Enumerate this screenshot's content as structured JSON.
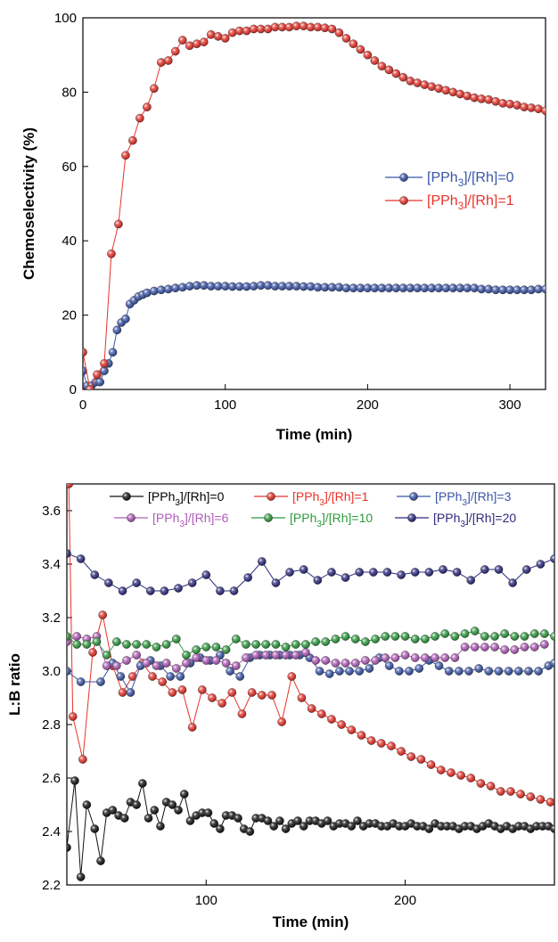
{
  "chart_data": [
    {
      "type": "line",
      "xlabel": "Time (min)",
      "ylabel": "Chemoselectivity (%)",
      "xlim": [
        0,
        325
      ],
      "ylim": [
        0,
        100
      ],
      "xticks": [
        0,
        100,
        200,
        300
      ],
      "yticks": [
        0,
        20,
        40,
        60,
        80,
        100
      ],
      "legend_position": "center-right",
      "series": [
        {
          "name": "[PPh3]/[Rh]=0",
          "name_parts": [
            "[PPh",
            "3",
            "]/[Rh]=0"
          ],
          "color": "#3a55a8",
          "x": [
            0,
            3,
            6,
            9,
            12,
            15,
            18,
            21,
            24,
            27,
            30,
            33,
            36,
            39,
            42,
            45,
            50,
            55,
            60,
            65,
            70,
            75,
            80,
            85,
            90,
            95,
            100,
            105,
            110,
            115,
            120,
            125,
            130,
            135,
            140,
            145,
            150,
            155,
            160,
            165,
            170,
            175,
            180,
            185,
            190,
            195,
            200,
            205,
            210,
            215,
            220,
            225,
            230,
            235,
            240,
            245,
            250,
            255,
            260,
            265,
            270,
            275,
            280,
            285,
            290,
            295,
            300,
            305,
            310,
            315,
            320,
            325
          ],
          "y": [
            5,
            1,
            1,
            2,
            2,
            5,
            7,
            10,
            16,
            18,
            19,
            23,
            24,
            25,
            25.5,
            26,
            26.5,
            26.8,
            27,
            27.3,
            27.5,
            27.8,
            28,
            28,
            27.8,
            27.8,
            27.8,
            27.7,
            27.7,
            27.7,
            27.8,
            28,
            28,
            27.8,
            27.8,
            27.8,
            27.8,
            27.7,
            27.7,
            27.5,
            27.5,
            27.5,
            27.5,
            27.3,
            27.3,
            27.3,
            27.3,
            27.3,
            27.3,
            27.3,
            27.3,
            27.3,
            27.3,
            27.3,
            27.3,
            27.3,
            27.3,
            27.3,
            27.3,
            27.3,
            27.3,
            27.3,
            27,
            27,
            26.8,
            26.8,
            26.8,
            26.8,
            26.8,
            26.8,
            27,
            27
          ]
        },
        {
          "name": "[PPh3]/[Rh]=1",
          "name_parts": [
            "[PPh",
            "3",
            "]/[Rh]=1"
          ],
          "color": "#e8322a",
          "x": [
            0,
            5,
            10,
            15,
            20,
            25,
            30,
            35,
            40,
            45,
            50,
            55,
            60,
            65,
            70,
            75,
            80,
            85,
            90,
            95,
            100,
            105,
            110,
            115,
            120,
            125,
            130,
            135,
            140,
            145,
            150,
            155,
            160,
            165,
            170,
            175,
            180,
            185,
            190,
            195,
            200,
            205,
            210,
            215,
            220,
            225,
            230,
            235,
            240,
            245,
            250,
            255,
            260,
            265,
            270,
            275,
            280,
            285,
            290,
            295,
            300,
            305,
            310,
            315,
            320,
            325
          ],
          "y": [
            10,
            0,
            4,
            7,
            36.5,
            44.5,
            63,
            67,
            73,
            76,
            81,
            88,
            88.5,
            91,
            94,
            92.5,
            93,
            93.5,
            95.5,
            95,
            94.5,
            96,
            96.5,
            96.5,
            97,
            97,
            97,
            97.5,
            97.5,
            97.5,
            97.8,
            97.8,
            97.5,
            97.5,
            97.3,
            97,
            96,
            94.5,
            93,
            91.5,
            90,
            88.5,
            87,
            86,
            85,
            84,
            83,
            82.5,
            82,
            81.5,
            81,
            80.5,
            80,
            79.5,
            79,
            78.5,
            78.2,
            78,
            77.5,
            77,
            76.8,
            76.5,
            76,
            75.8,
            75.5,
            75
          ]
        }
      ]
    },
    {
      "type": "line",
      "xlabel": "Time (min)",
      "ylabel": "L:B ratio",
      "xlim": [
        30,
        275
      ],
      "ylim": [
        2.2,
        3.7
      ],
      "xticks": [
        100,
        200
      ],
      "yticks": [
        2.2,
        2.4,
        2.6,
        2.8,
        3.0,
        3.2,
        3.4,
        3.6
      ],
      "legend_position": "top",
      "series": [
        {
          "name": "[PPh3]/[Rh]=0",
          "name_parts": [
            "[PPh",
            "3",
            "]/[Rh]=0"
          ],
          "color": "#111111",
          "text_color": "#000000",
          "x": [
            30,
            34,
            37,
            40,
            44,
            47,
            50,
            53,
            56,
            59,
            62,
            65,
            68,
            71,
            74,
            77,
            80,
            83,
            86,
            89,
            92,
            95,
            98,
            101,
            104,
            107,
            110,
            113,
            116,
            119,
            122,
            125,
            128,
            131,
            134,
            137,
            140,
            143,
            146,
            149,
            152,
            155,
            158,
            161,
            164,
            167,
            170,
            173,
            176,
            179,
            182,
            185,
            188,
            191,
            194,
            197,
            200,
            203,
            206,
            209,
            212,
            215,
            218,
            221,
            224,
            227,
            230,
            233,
            236,
            239,
            242,
            245,
            248,
            251,
            254,
            257,
            260,
            263,
            266,
            269,
            272,
            275
          ],
          "y": [
            2.34,
            2.59,
            2.23,
            2.5,
            2.41,
            2.29,
            2.47,
            2.48,
            2.46,
            2.45,
            2.51,
            2.5,
            2.58,
            2.45,
            2.48,
            2.42,
            2.51,
            2.5,
            2.48,
            2.54,
            2.44,
            2.46,
            2.47,
            2.47,
            2.43,
            2.41,
            2.46,
            2.46,
            2.45,
            2.41,
            2.4,
            2.45,
            2.45,
            2.44,
            2.42,
            2.44,
            2.41,
            2.43,
            2.44,
            2.42,
            2.44,
            2.44,
            2.43,
            2.44,
            2.42,
            2.43,
            2.43,
            2.42,
            2.44,
            2.42,
            2.43,
            2.43,
            2.42,
            2.42,
            2.43,
            2.42,
            2.42,
            2.43,
            2.42,
            2.42,
            2.41,
            2.43,
            2.42,
            2.42,
            2.42,
            2.41,
            2.42,
            2.42,
            2.41,
            2.42,
            2.43,
            2.42,
            2.41,
            2.42,
            2.41,
            2.42,
            2.42,
            2.41,
            2.42,
            2.42,
            2.42,
            2.41
          ]
        },
        {
          "name": "[PPh3]/[Rh]=1",
          "name_parts": [
            "[PPh",
            "3",
            "]/[Rh]=1"
          ],
          "color": "#e8322a",
          "text_color": "#e8322a",
          "x": [
            31,
            33,
            38,
            43,
            48,
            53,
            58,
            63,
            68,
            73,
            78,
            83,
            88,
            93,
            98,
            103,
            108,
            113,
            118,
            123,
            128,
            133,
            138,
            143,
            148,
            153,
            158,
            163,
            168,
            173,
            178,
            183,
            188,
            193,
            198,
            203,
            208,
            213,
            218,
            223,
            228,
            233,
            238,
            243,
            248,
            253,
            258,
            263,
            268,
            273
          ],
          "y": [
            3.7,
            2.83,
            2.67,
            3.07,
            3.21,
            3.02,
            2.92,
            2.98,
            3.03,
            2.98,
            2.96,
            2.92,
            2.93,
            2.79,
            2.93,
            2.9,
            2.88,
            2.92,
            2.84,
            2.92,
            2.91,
            2.91,
            2.81,
            2.98,
            2.9,
            2.86,
            2.84,
            2.82,
            2.8,
            2.78,
            2.76,
            2.74,
            2.73,
            2.72,
            2.7,
            2.68,
            2.67,
            2.65,
            2.63,
            2.62,
            2.61,
            2.6,
            2.58,
            2.57,
            2.55,
            2.55,
            2.54,
            2.53,
            2.52,
            2.51
          ]
        },
        {
          "name": "[PPh3]/[Rh]=3",
          "name_parts": [
            "[PPh",
            "3",
            "]/[Rh]=3"
          ],
          "color": "#3a55a8",
          "text_color": "#3a55a8",
          "x": [
            30,
            37,
            47,
            53,
            57,
            62,
            67,
            72,
            77,
            82,
            87,
            92,
            97,
            102,
            107,
            112,
            117,
            122,
            127,
            132,
            137,
            142,
            147,
            152,
            157,
            162,
            167,
            172,
            177,
            182,
            187,
            192,
            197,
            202,
            207,
            212,
            217,
            222,
            227,
            232,
            237,
            242,
            247,
            252,
            257,
            262,
            267,
            272,
            275
          ],
          "y": [
            3.0,
            2.96,
            2.96,
            3.03,
            2.98,
            2.92,
            3.02,
            3.04,
            3.02,
            2.98,
            2.98,
            3.03,
            3.05,
            3.04,
            3.06,
            3.0,
            2.98,
            3.05,
            3.06,
            3.06,
            3.06,
            3.06,
            3.06,
            3.05,
            3.0,
            2.99,
            3.0,
            3.0,
            3.0,
            3.01,
            3.05,
            3.02,
            3.0,
            3.0,
            3.01,
            3.04,
            3.02,
            3.0,
            3.0,
            3.0,
            3.01,
            3.0,
            3.0,
            3.0,
            3.0,
            3.0,
            3.0,
            3.02,
            3.03
          ]
        },
        {
          "name": "[PPh3]/[Rh]=6",
          "name_parts": [
            "[PPh",
            "3",
            "]/[Rh]=6"
          ],
          "color": "#b05cb8",
          "text_color": "#b05cb8",
          "x": [
            30,
            35,
            40,
            45,
            50,
            55,
            60,
            65,
            70,
            75,
            80,
            85,
            90,
            95,
            100,
            105,
            110,
            115,
            120,
            125,
            130,
            135,
            140,
            145,
            150,
            155,
            160,
            165,
            170,
            175,
            180,
            185,
            190,
            195,
            200,
            205,
            210,
            215,
            220,
            225,
            230,
            235,
            240,
            245,
            250,
            255,
            260,
            265,
            270
          ],
          "y": [
            3.11,
            3.13,
            3.12,
            3.13,
            3.02,
            3.02,
            3.04,
            3.06,
            3.03,
            3.02,
            3.03,
            3.01,
            3.03,
            3.05,
            3.04,
            3.04,
            3.03,
            3.02,
            3.05,
            3.06,
            3.06,
            3.06,
            3.06,
            3.06,
            3.07,
            3.04,
            3.04,
            3.03,
            3.03,
            3.03,
            3.04,
            3.04,
            3.05,
            3.05,
            3.06,
            3.05,
            3.05,
            3.05,
            3.05,
            3.05,
            3.09,
            3.09,
            3.09,
            3.09,
            3.08,
            3.08,
            3.09,
            3.09,
            3.1
          ]
        },
        {
          "name": "[PPh3]/[Rh]=10",
          "name_parts": [
            "[PPh",
            "3",
            "]/[Rh]=10"
          ],
          "color": "#2e9a3e",
          "text_color": "#2e9a3e",
          "x": [
            30,
            35,
            40,
            45,
            50,
            55,
            60,
            65,
            70,
            75,
            80,
            85,
            90,
            95,
            100,
            105,
            110,
            115,
            120,
            125,
            130,
            135,
            140,
            145,
            150,
            155,
            160,
            165,
            170,
            175,
            180,
            185,
            190,
            195,
            200,
            205,
            210,
            215,
            220,
            225,
            230,
            235,
            240,
            245,
            250,
            255,
            260,
            265,
            270,
            275
          ],
          "y": [
            3.13,
            3.1,
            3.1,
            3.11,
            3.06,
            3.11,
            3.1,
            3.1,
            3.1,
            3.09,
            3.1,
            3.12,
            3.06,
            3.08,
            3.09,
            3.09,
            3.08,
            3.12,
            3.1,
            3.1,
            3.1,
            3.1,
            3.09,
            3.1,
            3.1,
            3.11,
            3.11,
            3.12,
            3.13,
            3.12,
            3.11,
            3.12,
            3.13,
            3.13,
            3.13,
            3.12,
            3.12,
            3.13,
            3.14,
            3.13,
            3.14,
            3.15,
            3.13,
            3.13,
            3.14,
            3.13,
            3.13,
            3.14,
            3.14,
            3.13
          ]
        },
        {
          "name": "[PPh3]/[Rh]=20",
          "name_parts": [
            "[PPh",
            "3",
            "]/[Rh]=20"
          ],
          "color": "#2b2a7e",
          "text_color": "#2b2a7e",
          "x": [
            30,
            37,
            44,
            51,
            58,
            65,
            72,
            79,
            86,
            93,
            100,
            107,
            114,
            121,
            128,
            135,
            142,
            149,
            156,
            163,
            170,
            177,
            184,
            191,
            198,
            205,
            212,
            219,
            226,
            233,
            240,
            247,
            254,
            261,
            268,
            275
          ],
          "y": [
            3.44,
            3.42,
            3.36,
            3.33,
            3.3,
            3.33,
            3.3,
            3.3,
            3.31,
            3.33,
            3.36,
            3.3,
            3.3,
            3.35,
            3.41,
            3.33,
            3.37,
            3.38,
            3.34,
            3.37,
            3.35,
            3.37,
            3.37,
            3.37,
            3.36,
            3.37,
            3.37,
            3.38,
            3.37,
            3.34,
            3.38,
            3.38,
            3.33,
            3.38,
            3.4,
            3.42
          ]
        }
      ]
    }
  ]
}
